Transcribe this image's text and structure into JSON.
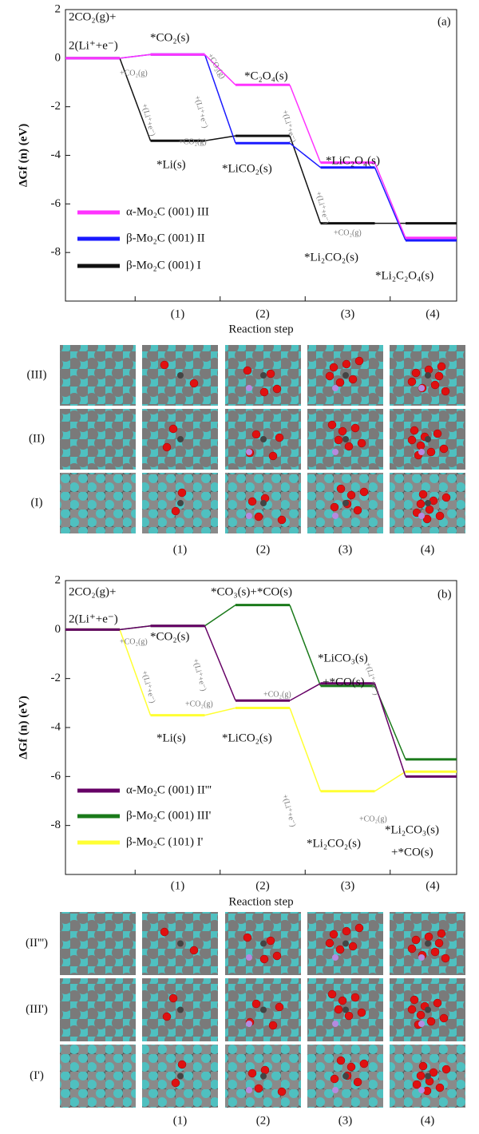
{
  "chart_data": [
    {
      "type": "line",
      "panel": "(a)",
      "ylabel": "ΔGf (n) (eV)",
      "xlabel": "Reaction step",
      "categories": [
        null,
        "(1)",
        "(2)",
        "(3)",
        "(4)"
      ],
      "ylim": [
        -10,
        2
      ],
      "yticks": [
        -8,
        -6,
        -4,
        -2,
        0,
        2
      ],
      "legend": "left",
      "series": [
        {
          "name": "α-Mo₂C (001) III",
          "color": "#ff33ff",
          "values": [
            0,
            0.15,
            -1.1,
            -4.3,
            -7.4
          ]
        },
        {
          "name": "β-Mo₂C (001) II",
          "color": "#1a1aff",
          "values": [
            0,
            0.15,
            -3.5,
            -4.5,
            -7.5
          ]
        },
        {
          "name": "β-Mo₂C (001) I",
          "color": "#111111",
          "values": [
            0,
            -3.4,
            -3.2,
            -6.8,
            -6.8
          ]
        }
      ],
      "annotations": [
        "2CO₂(g)+",
        "2(Li⁺+e⁻)",
        "*CO₂(s)",
        "*C₂O₄(s)",
        "*LiC₂O₄(s)",
        "*Li₂C₂O₄(s)",
        "*Li(s)",
        "*LiCO₂(s)",
        "*Li₂CO₂(s)",
        "+CO₂(g)",
        "+CO₂(g)",
        "+CO₂(g)",
        "+CO₂(g)",
        "+(Li⁺+e⁻)",
        "+(Li⁺+e⁻)",
        "+(Li⁺+e⁻)",
        "+(Li⁺+e⁻)"
      ]
    },
    {
      "type": "line",
      "panel": "(b)",
      "ylabel": "ΔGf (n) (eV)",
      "xlabel": "Reaction step",
      "categories": [
        null,
        "(1)",
        "(2)",
        "(3)",
        "(4)"
      ],
      "ylim": [
        -10,
        2
      ],
      "yticks": [
        -8,
        -6,
        -4,
        -2,
        0,
        2
      ],
      "legend": "left",
      "series": [
        {
          "name": "α-Mo₂C (001) II'''",
          "color": "#660066",
          "values": [
            0,
            0.15,
            -2.9,
            -2.2,
            -6.0
          ]
        },
        {
          "name": "β-Mo₂C (001) III'",
          "color": "#1a7a1a",
          "values": [
            0,
            0.15,
            1.0,
            -2.3,
            -5.3
          ]
        },
        {
          "name": "β-Mo₂C (101) I'",
          "color": "#ffff33",
          "values": [
            0,
            -3.5,
            -3.2,
            -6.6,
            -5.8
          ]
        }
      ],
      "annotations": [
        "2CO₂(g)+",
        "2(Li⁺+e⁻)",
        "*CO₂(s)",
        "*CO₃(s)+*CO(s)",
        "*LiCO₃(s)",
        "+*CO(s)",
        "*Li(s)",
        "*LiCO₂(s)",
        "*Li₂CO₂(s)",
        "*Li₂CO₃(s)",
        "+*CO(s)",
        "+CO₂(g)",
        "+CO₂(g)",
        "+CO₂(g)",
        "+CO₂(g)",
        "+(Li⁺+e⁻)",
        "+(Li⁺+e⁻)",
        "+(Li⁺+e⁻)",
        "+(Li⁺+e⁻)"
      ]
    }
  ],
  "structures": [
    {
      "rows": [
        "(III)",
        "(II)",
        "(I)"
      ],
      "column_labels": [
        "(1)",
        "(2)",
        "(3)",
        "(4)"
      ]
    },
    {
      "rows": [
        "(II''')",
        "(III')",
        "(I')"
      ],
      "column_labels": [
        "(1)",
        "(2)",
        "(3)",
        "(4)"
      ]
    }
  ]
}
